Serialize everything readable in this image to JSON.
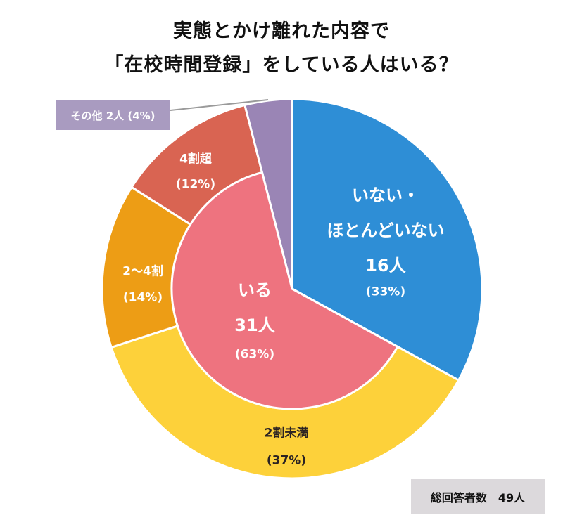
{
  "title": {
    "line1": "実態とかけ離れた内容で",
    "line2": "「在校時間登録」をしている人はいる？"
  },
  "chart_data": {
    "type": "pie",
    "subtype": "nested-donut",
    "title": "実態とかけ離れた内容で「在校時間登録」をしている人はいる？",
    "total_respondents": 49,
    "outer_ring": [
      {
        "name": "いない・ほとんどいない",
        "count": 16,
        "percent": 33,
        "color": "#2E8ED6"
      },
      {
        "name": "2割未満",
        "percent": 37,
        "color": "#FDD13A"
      },
      {
        "name": "2〜4割",
        "percent": 14,
        "color": "#ED9D15"
      },
      {
        "name": "4割超",
        "percent": 12,
        "color": "#D96452"
      },
      {
        "name": "その他",
        "count": 2,
        "percent": 4,
        "color": "#9A85B5"
      }
    ],
    "inner_ring": [
      {
        "name": "いる",
        "count": 31,
        "percent": 63,
        "color": "#EE737F",
        "covers": [
          "2割未満",
          "2〜4割",
          "4割超"
        ]
      }
    ],
    "start_angle": 0,
    "direction": "clockwise"
  },
  "labels": {
    "blue": {
      "line1": "いない・",
      "line2": "ほとんどいない",
      "line3": "16人",
      "line4": "(33%)"
    },
    "yellow": {
      "line1": "2割未満",
      "line2": "(37%)"
    },
    "orange": {
      "line1": "2〜4割",
      "line2": "(14%)"
    },
    "red": {
      "line1": "4割超",
      "line2": "(12%)"
    },
    "pink": {
      "line1": "いる",
      "line2": "31人",
      "line3": "(63%)"
    },
    "other": "その他  2人 (4%)"
  },
  "total": {
    "label": "総回答者数　49人"
  }
}
